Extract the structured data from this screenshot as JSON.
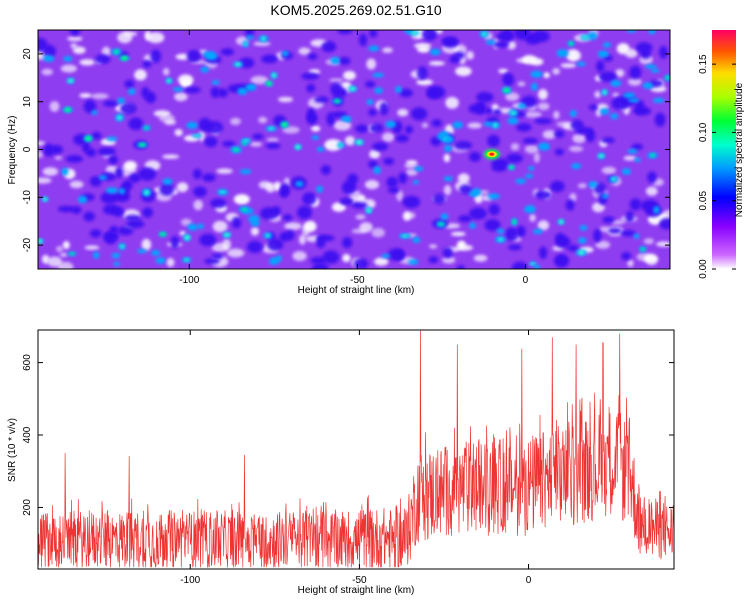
{
  "title": "KOM5.2025.269.02.51.G10",
  "chart_data": [
    {
      "type": "heatmap",
      "title": "KOM5.2025.269.02.51.G10",
      "xlabel": "Height of straight line (km)",
      "ylabel": "Frequency (Hz)",
      "xlim": [
        -145,
        43
      ],
      "ylim": [
        -25,
        25
      ],
      "xticks": [
        -100,
        -50,
        0
      ],
      "yticks": [
        -20,
        -10,
        0,
        10,
        20
      ],
      "xtick_labels": [
        "-100",
        "-50",
        "0"
      ],
      "ytick_labels": [
        "-20",
        "-10",
        "0",
        "10",
        "20"
      ],
      "peak": {
        "x": -10,
        "y": -1,
        "value": 0.175
      },
      "colorbar": {
        "label": "Normalized spectral amplitude",
        "range": [
          0.0,
          0.175
        ],
        "ticks": [
          0.0,
          0.05,
          0.1,
          0.15
        ],
        "tick_labels": [
          "0.00",
          "0.05",
          "0.10",
          "0.15"
        ],
        "colors": [
          "#ffffff",
          "#9a00ff",
          "#0000ff",
          "#00c8ff",
          "#00ff66",
          "#aaff00",
          "#ffd700",
          "#ff4500",
          "#ff0066"
        ]
      }
    },
    {
      "type": "line",
      "xlabel": "Height of straight line (km)",
      "ylabel": "SNR (10 * v/v)",
      "xlim": [
        -145,
        43
      ],
      "ylim": [
        30,
        690
      ],
      "xticks": [
        -100,
        -50,
        0
      ],
      "yticks": [
        200,
        400,
        600
      ],
      "xtick_labels": [
        "-100",
        "-50",
        "0"
      ],
      "ytick_labels": [
        "200",
        "400",
        "600"
      ],
      "color": "#ee3333",
      "envelope": {
        "x": [
          -145,
          -110,
          -80,
          -55,
          -36,
          -33,
          -20,
          0,
          15,
          25,
          30,
          33,
          43
        ],
        "baseline": [
          110,
          110,
          110,
          110,
          115,
          230,
          250,
          260,
          300,
          330,
          290,
          150,
          130
        ],
        "spread": [
          80,
          85,
          80,
          85,
          90,
          130,
          130,
          140,
          150,
          150,
          150,
          90,
          80
        ],
        "spikes": [
          {
            "x": -137,
            "y": 350
          },
          {
            "x": -118,
            "y": 342
          },
          {
            "x": -84,
            "y": 345
          },
          {
            "x": -32,
            "y": 690
          },
          {
            "x": -21,
            "y": 650
          },
          {
            "x": -2,
            "y": 638
          },
          {
            "x": 7,
            "y": 670
          },
          {
            "x": 14,
            "y": 650
          },
          {
            "x": 22,
            "y": 655
          },
          {
            "x": 27,
            "y": 680
          }
        ]
      }
    }
  ]
}
